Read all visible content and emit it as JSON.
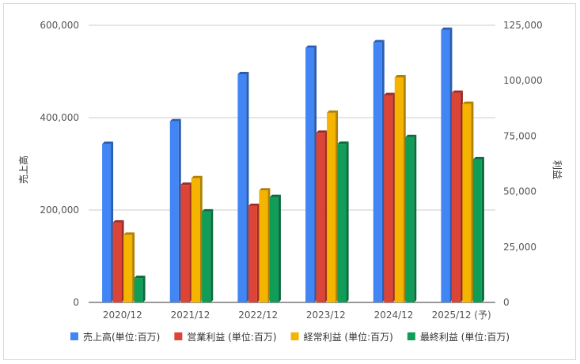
{
  "chart_data": {
    "type": "bar",
    "categories": [
      "2020/12",
      "2021/12",
      "2022/12",
      "2023/12",
      "2024/12",
      "2025/12 (予)"
    ],
    "left_axis": {
      "label": "売上高",
      "ylim": [
        0,
        600000
      ],
      "ticks": [
        "0",
        "200,000",
        "400,000",
        "600,000"
      ],
      "tick_values": [
        0,
        200000,
        400000,
        600000
      ]
    },
    "right_axis": {
      "label": "利益",
      "ylim": [
        0,
        125000
      ],
      "ticks": [
        "0",
        "25,000",
        "50,000",
        "75,000",
        "100,000",
        "125,000"
      ],
      "tick_values": [
        0,
        25000,
        50000,
        75000,
        100000,
        125000
      ]
    },
    "series": [
      {
        "name": "売上高(単位:百万)",
        "axis": "left",
        "color": "#4285f4",
        "dark": "#2a5db0",
        "values": [
          343000,
          392000,
          494000,
          551000,
          563000,
          590000
        ]
      },
      {
        "name": "営業利益 (単位:百万)",
        "axis": "right",
        "color": "#db4437",
        "dark": "#9c2d24",
        "values": [
          36000,
          53000,
          43500,
          76500,
          93500,
          94500
        ]
      },
      {
        "name": "経常利益 (単位:百万)",
        "axis": "right",
        "color": "#f4b400",
        "dark": "#b08000",
        "values": [
          30500,
          56000,
          50500,
          85500,
          101500,
          89500
        ]
      },
      {
        "name": "最終利益 (単位:百万)",
        "axis": "right",
        "color": "#0f9d58",
        "dark": "#0a6b3c",
        "values": [
          11000,
          41000,
          47500,
          71500,
          74500,
          64500
        ]
      }
    ],
    "grid": "horizontal",
    "legend": "bottom"
  }
}
